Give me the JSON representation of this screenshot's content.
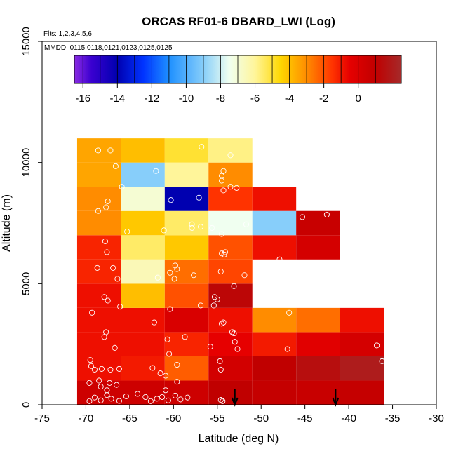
{
  "chart_data": {
    "type": "heatmap",
    "title": "ORCAS RF01-6 DBARD_LWI (Log)",
    "subtitle_flights": "Flts: 1,2,3,4,5,6",
    "subtitle_dates": "MMDD: 0115,0118,0121,0123,0125,0125",
    "xlabel": "Latitude (deg N)",
    "ylabel": "Altitude (m)",
    "xlim": [
      -75,
      -30
    ],
    "ylim": [
      0,
      15000
    ],
    "xticks": [
      -75,
      -70,
      -65,
      -60,
      -55,
      -50,
      -45,
      -40,
      -35,
      -30
    ],
    "xtick_labels": [
      "-75",
      "-70",
      "-65",
      "-60",
      "-55",
      "-50",
      "-45",
      "-40",
      "-35",
      "-30"
    ],
    "yticks": [
      0,
      5000,
      10000,
      15000
    ],
    "ytick_labels": [
      "0",
      "5000",
      "10000",
      "15000"
    ],
    "colorbar": {
      "min": -16.5,
      "max": 2.5,
      "ticks": [
        -16,
        -14,
        -12,
        -10,
        -8,
        -6,
        -4,
        -2,
        0
      ],
      "tick_labels": [
        "-16",
        "-14",
        "-12",
        "-10",
        "-8",
        "-6",
        "-4",
        "-2",
        "0"
      ],
      "stops": [
        {
          "v": -16.5,
          "c": "#8a2be2"
        },
        {
          "v": -15.5,
          "c": "#3a00d0"
        },
        {
          "v": -14,
          "c": "#0000b0"
        },
        {
          "v": -12.5,
          "c": "#0033ff"
        },
        {
          "v": -11,
          "c": "#1e90ff"
        },
        {
          "v": -9,
          "c": "#87cefa"
        },
        {
          "v": -7.5,
          "c": "#f0fff0"
        },
        {
          "v": -6,
          "c": "#fff59a"
        },
        {
          "v": -4.5,
          "c": "#ffd700"
        },
        {
          "v": -3,
          "c": "#ff8c00"
        },
        {
          "v": -1.5,
          "c": "#ff3300"
        },
        {
          "v": -0.5,
          "c": "#e60000"
        },
        {
          "v": 1,
          "c": "#c00000"
        },
        {
          "v": 2.5,
          "c": "#a52a2a"
        }
      ]
    },
    "lat_bins": [
      [
        -71,
        -66
      ],
      [
        -66,
        -61
      ],
      [
        -61,
        -56
      ],
      [
        -56,
        -51
      ],
      [
        -51,
        -46
      ],
      [
        -46,
        -41
      ],
      [
        -41,
        -36
      ]
    ],
    "alt_bin_width": 1000,
    "cells": [
      {
        "lat": 0,
        "alt": 0,
        "v": 0.5
      },
      {
        "lat": 1,
        "alt": 0,
        "v": 0.5
      },
      {
        "lat": 2,
        "alt": 0,
        "v": 0.5
      },
      {
        "lat": 3,
        "alt": 0,
        "v": 1.0
      },
      {
        "lat": 4,
        "alt": 0,
        "v": 0.8
      },
      {
        "lat": 5,
        "alt": 0,
        "v": 0.7
      },
      {
        "lat": 6,
        "alt": 0,
        "v": 0.8
      },
      {
        "lat": 0,
        "alt": 1,
        "v": -0.8
      },
      {
        "lat": 1,
        "alt": 1,
        "v": -1.0
      },
      {
        "lat": 2,
        "alt": 1,
        "v": -2.2
      },
      {
        "lat": 3,
        "alt": 1,
        "v": 0.3
      },
      {
        "lat": 4,
        "alt": 1,
        "v": 1.0
      },
      {
        "lat": 5,
        "alt": 1,
        "v": 1.5
      },
      {
        "lat": 6,
        "alt": 1,
        "v": 2.0
      },
      {
        "lat": 0,
        "alt": 2,
        "v": -0.8
      },
      {
        "lat": 1,
        "alt": 2,
        "v": -0.8
      },
      {
        "lat": 2,
        "alt": 2,
        "v": -1.2
      },
      {
        "lat": 3,
        "alt": 2,
        "v": -0.5
      },
      {
        "lat": 4,
        "alt": 2,
        "v": -1.0
      },
      {
        "lat": 5,
        "alt": 2,
        "v": -0.3
      },
      {
        "lat": 6,
        "alt": 2,
        "v": 0.2
      },
      {
        "lat": 0,
        "alt": 3,
        "v": -0.8
      },
      {
        "lat": 1,
        "alt": 3,
        "v": -0.8
      },
      {
        "lat": 2,
        "alt": 3,
        "v": 0.0
      },
      {
        "lat": 3,
        "alt": 3,
        "v": -0.8
      },
      {
        "lat": 4,
        "alt": 3,
        "v": -3.0
      },
      {
        "lat": 5,
        "alt": 3,
        "v": -2.5
      },
      {
        "lat": 6,
        "alt": 3,
        "v": -0.8
      },
      {
        "lat": 0,
        "alt": 4,
        "v": -0.8
      },
      {
        "lat": 1,
        "alt": 4,
        "v": -4.0
      },
      {
        "lat": 2,
        "alt": 4,
        "v": -2.0
      },
      {
        "lat": 3,
        "alt": 4,
        "v": 1.2
      },
      {
        "lat": 0,
        "alt": 5,
        "v": -1.2
      },
      {
        "lat": 1,
        "alt": 5,
        "v": -6.5
      },
      {
        "lat": 2,
        "alt": 5,
        "v": -2.5
      },
      {
        "lat": 3,
        "alt": 5,
        "v": -1.8
      },
      {
        "lat": 0,
        "alt": 6,
        "v": -1.2
      },
      {
        "lat": 1,
        "alt": 6,
        "v": -5.5
      },
      {
        "lat": 2,
        "alt": 6,
        "v": -4.2
      },
      {
        "lat": 3,
        "alt": 6,
        "v": -2.0
      },
      {
        "lat": 4,
        "alt": 6,
        "v": -0.8
      },
      {
        "lat": 5,
        "alt": 6,
        "v": 0.2
      },
      {
        "lat": 0,
        "alt": 7,
        "v": -3.0
      },
      {
        "lat": 1,
        "alt": 7,
        "v": -4.2
      },
      {
        "lat": 2,
        "alt": 7,
        "v": -5.5
      },
      {
        "lat": 3,
        "alt": 7,
        "v": -7.5
      },
      {
        "lat": 4,
        "alt": 7,
        "v": -9.0
      },
      {
        "lat": 5,
        "alt": 7,
        "v": 0.7
      },
      {
        "lat": 0,
        "alt": 8,
        "v": -3.0
      },
      {
        "lat": 1,
        "alt": 8,
        "v": -7.0
      },
      {
        "lat": 2,
        "alt": 8,
        "v": -14.0
      },
      {
        "lat": 3,
        "alt": 8,
        "v": -1.5
      },
      {
        "lat": 4,
        "alt": 8,
        "v": -0.8
      },
      {
        "lat": 0,
        "alt": 9,
        "v": -3.5
      },
      {
        "lat": 1,
        "alt": 9,
        "v": -9.0
      },
      {
        "lat": 2,
        "alt": 9,
        "v": -6.0
      },
      {
        "lat": 3,
        "alt": 9,
        "v": -3.0
      },
      {
        "lat": 0,
        "alt": 10,
        "v": -3.5
      },
      {
        "lat": 1,
        "alt": 10,
        "v": -4.0
      },
      {
        "lat": 2,
        "alt": 10,
        "v": -5.0
      },
      {
        "lat": 3,
        "alt": 10,
        "v": -5.8
      }
    ],
    "samples": [
      [
        -69.6,
        150
      ],
      [
        -69.0,
        300
      ],
      [
        -68.3,
        180
      ],
      [
        -67.6,
        400
      ],
      [
        -67.1,
        250
      ],
      [
        -66.2,
        160
      ],
      [
        -65.4,
        350
      ],
      [
        -64.1,
        450
      ],
      [
        -63.2,
        320
      ],
      [
        -62.6,
        150
      ],
      [
        -61.9,
        250
      ],
      [
        -61.3,
        320
      ],
      [
        -60.6,
        180
      ],
      [
        -59.8,
        380
      ],
      [
        -59.2,
        220
      ],
      [
        -58.4,
        300
      ],
      [
        -54.6,
        200
      ],
      [
        -54.4,
        150
      ],
      [
        -67.6,
        600
      ],
      [
        -60.9,
        600
      ],
      [
        -69.6,
        900
      ],
      [
        -68.5,
        1000
      ],
      [
        -68.3,
        750
      ],
      [
        -67.3,
        900
      ],
      [
        -66.5,
        820
      ],
      [
        -59.6,
        950
      ],
      [
        -69.4,
        1600
      ],
      [
        -69.0,
        1450
      ],
      [
        -68.2,
        1480
      ],
      [
        -67.2,
        1450
      ],
      [
        -66.2,
        1480
      ],
      [
        -62.4,
        1520
      ],
      [
        -61.5,
        1300
      ],
      [
        -60.9,
        1200
      ],
      [
        -59.6,
        1650
      ],
      [
        -54.7,
        1800
      ],
      [
        -54.6,
        1450
      ],
      [
        -36.2,
        1800
      ],
      [
        -69.5,
        1850
      ],
      [
        -66.7,
        2350
      ],
      [
        -60.5,
        2100
      ],
      [
        -55.8,
        2400
      ],
      [
        -52.7,
        2300
      ],
      [
        -53.0,
        2600
      ],
      [
        -47.0,
        2300
      ],
      [
        -36.8,
        2450
      ],
      [
        -67.9,
        2800
      ],
      [
        -67.7,
        3000
      ],
      [
        -60.7,
        2700
      ],
      [
        -58.7,
        2800
      ],
      [
        -53.3,
        3000
      ],
      [
        -53.1,
        2950
      ],
      [
        -69.3,
        3800
      ],
      [
        -62.2,
        3400
      ],
      [
        -54.5,
        3350
      ],
      [
        -54.3,
        3400
      ],
      [
        -46.8,
        3800
      ],
      [
        -35.3,
        3400
      ],
      [
        -67.5,
        4300
      ],
      [
        -66.1,
        4050
      ],
      [
        -67.9,
        4450
      ],
      [
        -60.4,
        3950
      ],
      [
        -56.9,
        4100
      ],
      [
        -55.4,
        4100
      ],
      [
        -55.0,
        4350
      ],
      [
        -55.3,
        4450
      ],
      [
        -53.1,
        4900
      ],
      [
        -61.8,
        5250
      ],
      [
        -60.4,
        5450
      ],
      [
        -59.8,
        5750
      ],
      [
        -59.6,
        5600
      ],
      [
        -57.7,
        5350
      ],
      [
        -54.6,
        5500
      ],
      [
        -51.9,
        5350
      ],
      [
        -68.7,
        5650
      ],
      [
        -66.9,
        5650
      ],
      [
        -66.4,
        5200
      ],
      [
        -59.9,
        5200
      ],
      [
        -67.8,
        6750
      ],
      [
        -67.6,
        6300
      ],
      [
        -54.5,
        6250
      ],
      [
        -54.1,
        6300
      ],
      [
        -54.2,
        6200
      ],
      [
        -47.9,
        6000
      ],
      [
        -65.3,
        7150
      ],
      [
        -61.1,
        7200
      ],
      [
        -56.9,
        7350
      ],
      [
        -54.5,
        7050
      ],
      [
        -57.9,
        7300
      ],
      [
        -57.9,
        7450
      ],
      [
        -55.6,
        7300
      ],
      [
        -51.7,
        7450
      ],
      [
        -45.3,
        7750
      ],
      [
        -42.5,
        7850
      ],
      [
        -68.6,
        8000
      ],
      [
        -67.7,
        8150
      ],
      [
        -67.5,
        8400
      ],
      [
        -60.3,
        8450
      ],
      [
        -57.1,
        8550
      ],
      [
        -54.3,
        8850
      ],
      [
        -53.5,
        9000
      ],
      [
        -52.8,
        8950
      ],
      [
        -65.9,
        9000
      ],
      [
        -66.6,
        9850
      ],
      [
        -62.0,
        9650
      ],
      [
        -54.5,
        9450
      ],
      [
        -54.5,
        9250
      ],
      [
        -54.3,
        9650
      ],
      [
        -68.6,
        10500
      ],
      [
        -67.2,
        10500
      ],
      [
        -56.8,
        10650
      ],
      [
        -53.5,
        10300
      ]
    ],
    "arrow_latitudes": [
      -53.0,
      -41.5
    ]
  },
  "colors": {
    "background": "#ffffff",
    "axis": "#000000",
    "sample_marker": "#ffffff"
  }
}
